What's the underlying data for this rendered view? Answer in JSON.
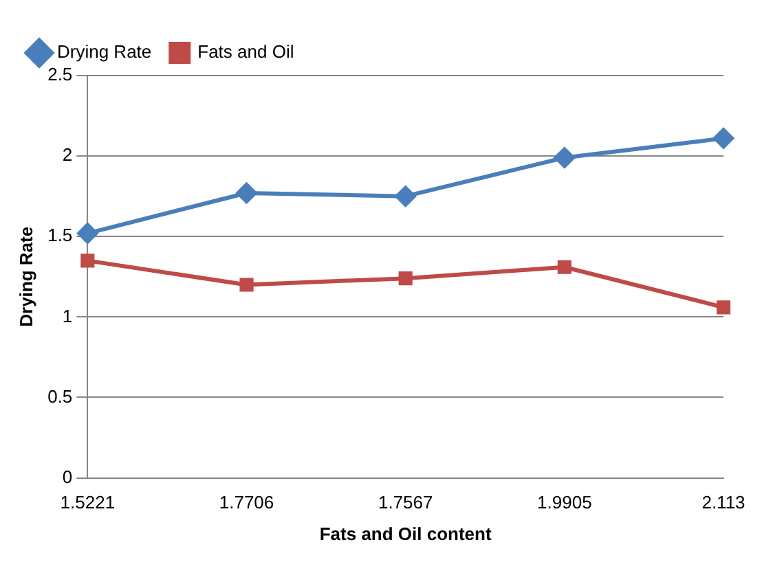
{
  "chart_data": {
    "type": "line",
    "xlabel": "Fats and Oil content",
    "ylabel": "Drying Rate",
    "categories": [
      "1.5221",
      "1.7706",
      "1.7567",
      "1.9905",
      "2.113"
    ],
    "series": [
      {
        "name": "Drying Rate",
        "color": "#4a7ebb",
        "marker": "diamond",
        "values": [
          1.52,
          1.77,
          1.75,
          1.99,
          2.11
        ]
      },
      {
        "name": "Fats and Oil",
        "color": "#be4b48",
        "marker": "square",
        "values": [
          1.35,
          1.2,
          1.24,
          1.31,
          1.06
        ]
      }
    ],
    "ylim": [
      0,
      2.5
    ],
    "yticks": [
      0,
      0.5,
      1,
      1.5,
      2,
      2.5
    ],
    "grid": "y",
    "legend": "top left"
  }
}
